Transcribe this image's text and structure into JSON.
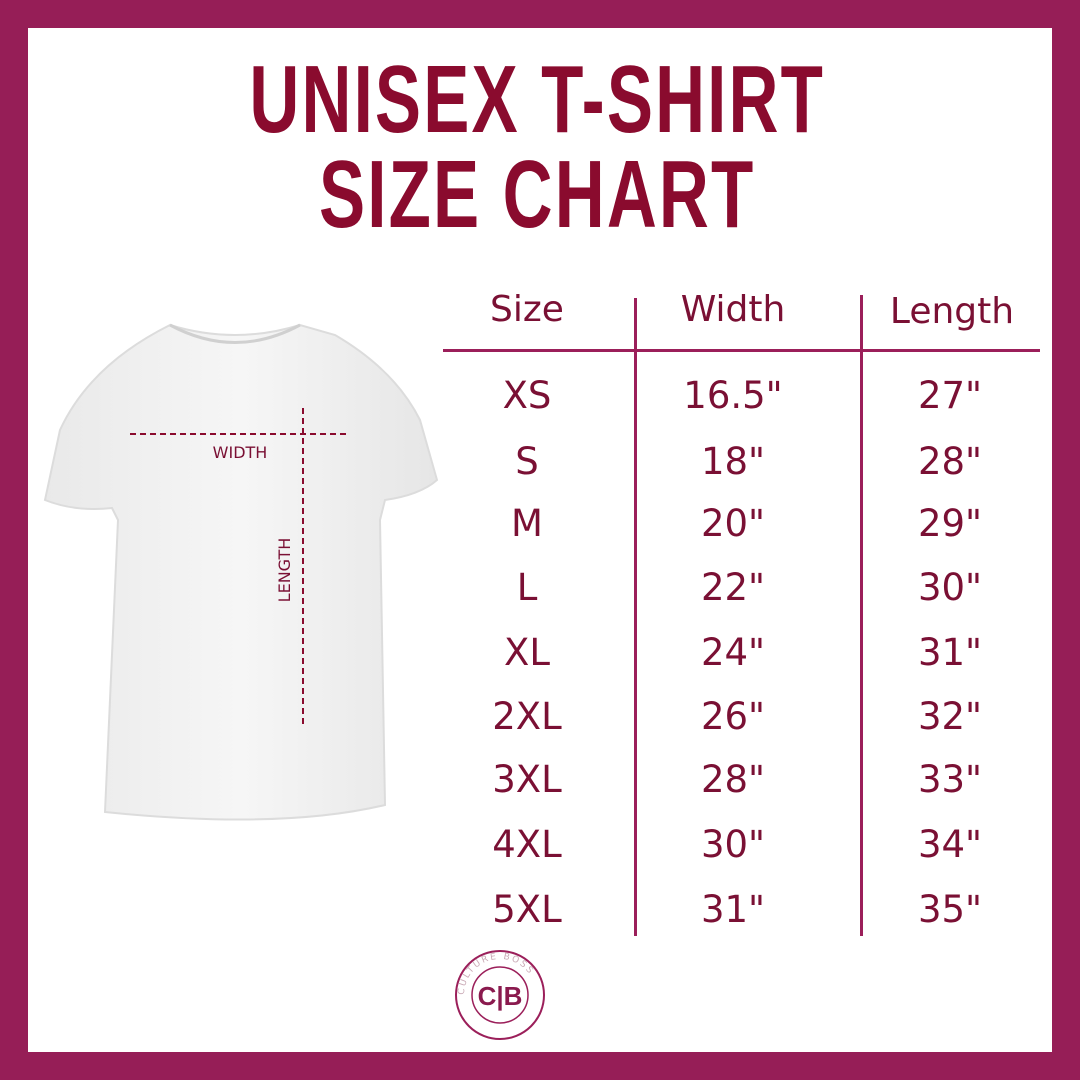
{
  "title": {
    "line1": "UNISEX T-SHIRT",
    "line2": "SIZE CHART"
  },
  "diagram": {
    "width_label": "WIDTH",
    "length_label": "LENGTH"
  },
  "table": {
    "headers": [
      "Size",
      "Width",
      "Length"
    ],
    "rows": [
      [
        "XS",
        "16.5\"",
        "27\""
      ],
      [
        "S",
        "18\"",
        "28\""
      ],
      [
        "M",
        "20\"",
        "29\""
      ],
      [
        "L",
        "22\"",
        "30\""
      ],
      [
        "XL",
        "24\"",
        "31\""
      ],
      [
        "2XL",
        "26\"",
        "32\""
      ],
      [
        "3XL",
        "28\"",
        "33\""
      ],
      [
        "4XL",
        "30\"",
        "34\""
      ],
      [
        "5XL",
        "31\"",
        "35\""
      ]
    ]
  },
  "logo": {
    "initials": "C|B",
    "ring_text": "CULTURE BOSS"
  },
  "colors": {
    "border": "#961E57",
    "title": "#8A0B2E",
    "text": "#7A1034",
    "lines": "#9B1F5A"
  }
}
